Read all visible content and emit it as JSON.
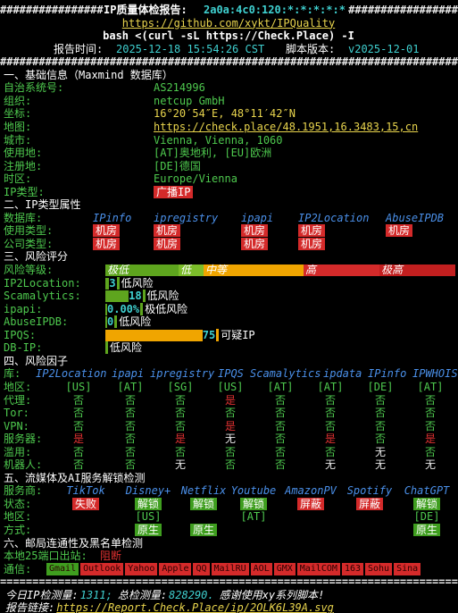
{
  "header": {
    "border_left": "################",
    "title": "IP质量体检报告:",
    "address": "2a0a:4c0:120:*:*:*:*:*",
    "border_right": "#################",
    "repo": "https://github.com/xykt/IPQuality",
    "command": "bash <(curl -sL https://Check.Place) -I",
    "report_time_label": "报告时间:",
    "report_time": "2025-12-18 15:54:26 CST",
    "version_label": "脚本版本:",
    "version": "v2025-12-01",
    "divider": "#######################################################################"
  },
  "basic": {
    "heading": "一、基础信息（Maxmind 数据库）",
    "rows": [
      {
        "label": "自治系统号:",
        "value": "AS214996",
        "color": "#4ec94e"
      },
      {
        "label": "组织:",
        "value": "netcup GmbH",
        "color": "#4ec94e"
      },
      {
        "label": "坐标:",
        "value": "16°20′54″E, 48°11′42″N",
        "color": "#e8d44d"
      },
      {
        "label": "地图:",
        "value": "https://check.place/48.1951,16.3483,15,cn",
        "color": "#e8d44d"
      },
      {
        "label": "城市:",
        "value": "Vienna, Vienna, 1060",
        "color": "#4ec94e"
      },
      {
        "label": "使用地:",
        "value": "[AT]奥地利, [EU]欧洲",
        "color": "#4ec94e"
      },
      {
        "label": "注册地:",
        "value": "[DE]德国",
        "color": "#4ec94e"
      },
      {
        "label": "时区:",
        "value": "Europe/Vienna",
        "color": "#4ec94e"
      },
      {
        "label": "IP类型:",
        "value": "广播IP",
        "color": "#ffffff",
        "background": "#d42a2a"
      }
    ]
  },
  "ip_type": {
    "heading": "二、IP类型属性",
    "db_label": "数据库:",
    "databases": [
      "IPinfo",
      "ipregistry",
      "ipapi",
      "IP2Location",
      "AbuseIPDB"
    ],
    "usage_label": "使用类型:",
    "usage": [
      "机房",
      "机房",
      "机房",
      "机房",
      "机房"
    ],
    "company_label": "公司类型:",
    "company": [
      "机房",
      "机房",
      "机房",
      "机房",
      null
    ],
    "box_color": "#d42a2a"
  },
  "risk": {
    "heading": "三、风险评分",
    "scale_label": "风险等级:",
    "scale": [
      "极低",
      "低",
      "中等",
      "高",
      "极高"
    ],
    "scale_colors": [
      "#5ea51e",
      "#7cbd2a",
      "#f0a500",
      "#d42a2a",
      "#c21f1f"
    ],
    "items": [
      {
        "name": "IP2Location:",
        "score": 3,
        "level": "低风险"
      },
      {
        "name": "Scamalytics:",
        "score": 18,
        "level": "低风险"
      },
      {
        "name": "ipapi:",
        "score": 0,
        "score_label": "0.00%",
        "level": "极低风险"
      },
      {
        "name": "AbuseIPDB:",
        "score": 0,
        "level": "低风险"
      },
      {
        "name": "IPQS:",
        "score": 75,
        "level": "可疑IP"
      },
      {
        "name": "DB-IP:",
        "level": "低风险"
      }
    ]
  },
  "factors": {
    "heading": "四、风险因子",
    "db_label": "库:",
    "databases": [
      "IP2Location",
      "ipapi",
      "ipregistry",
      "IPQS",
      "Scamalytics",
      "ipdata",
      "IPinfo",
      "IPWHOIS"
    ],
    "rows": [
      {
        "label": "地区:",
        "values": [
          "[US]",
          "[AT]",
          "[SG]",
          "[US]",
          "[AT]",
          "[AT]",
          "[DE]",
          "[AT]"
        ]
      },
      {
        "label": "代理:",
        "values": [
          "否",
          "否",
          "否",
          "是",
          "否",
          "否",
          "否",
          "否"
        ]
      },
      {
        "label": "Tor:",
        "values": [
          "否",
          "否",
          "否",
          "否",
          "否",
          "否",
          "否",
          "否"
        ]
      },
      {
        "label": "VPN:",
        "values": [
          "否",
          "否",
          "否",
          "是",
          "否",
          "否",
          "否",
          "否"
        ]
      },
      {
        "label": "服务器:",
        "values": [
          "是",
          "否",
          "是",
          "无",
          "否",
          "是",
          "否",
          "是"
        ]
      },
      {
        "label": "滥用:",
        "values": [
          "否",
          "否",
          "否",
          "否",
          "否",
          "否",
          "无",
          "否"
        ]
      },
      {
        "label": "机器人:",
        "values": [
          "否",
          "否",
          "无",
          "否",
          "否",
          "无",
          "无",
          "无"
        ]
      }
    ],
    "value_colors": {
      "否": "#4ec94e",
      "是": "#e03131",
      "无": "#e8e8e8",
      "[US]": "#4ec94e",
      "[AT]": "#4ec94e",
      "[SG]": "#4ec94e",
      "[DE]": "#4ec94e"
    }
  },
  "streaming": {
    "heading": "五、流媒体及AI服务解锁检测",
    "services_label": "服务商:",
    "services": [
      "TikTok",
      "Disney+",
      "Netflix",
      "Youtube",
      "AmazonPV",
      "Spotify",
      "ChatGPT"
    ],
    "status_label": "状态:",
    "status": [
      "失败",
      "解锁",
      "解锁",
      "解锁",
      "屏蔽",
      "屏蔽",
      "解锁"
    ],
    "status_colors": [
      "#d42a2a",
      "#3f9e1f",
      "#3f9e1f",
      "#3f9e1f",
      "#d42a2a",
      "#d42a2a",
      "#3f9e1f"
    ],
    "region_label": "地区:",
    "region": [
      null,
      "[US]",
      null,
      "[AT]",
      null,
      null,
      "[DE]"
    ],
    "method_label": "方式:",
    "method": [
      null,
      "原生",
      "原生",
      null,
      null,
      null,
      "原生"
    ],
    "method_color": "#3f9e1f"
  },
  "mail": {
    "heading": "六、邮局连通性及黑名单检测",
    "port_label": "本地25端口出站:",
    "port": "阻断",
    "conn_label": "通信:",
    "providers": [
      "Gmail",
      "Outlook",
      "Yahoo",
      "Apple",
      "QQ",
      "MailRU",
      "AOL",
      "GMX",
      "MailCOM",
      "163",
      "Sohu",
      "Sina"
    ],
    "colors": [
      "#3f9e1f",
      "#d42a2a",
      "#d42a2a",
      "#d42a2a",
      "#d42a2a",
      "#d42a2a",
      "#d42a2a",
      "#d42a2a",
      "#d42a2a",
      "#d42a2a",
      "#d42a2a",
      "#d42a2a"
    ]
  },
  "footer": {
    "divider": "=======================================================================",
    "today_label": "今日IP检测量:",
    "today": "1311;",
    "total_label": "总检测量:",
    "total": "828290.",
    "thanks": "感谢使用xy系列脚本!",
    "link_label": "报告链接:",
    "link": "https://Report.Check.Place/ip/2OLK6L39A.svg"
  }
}
